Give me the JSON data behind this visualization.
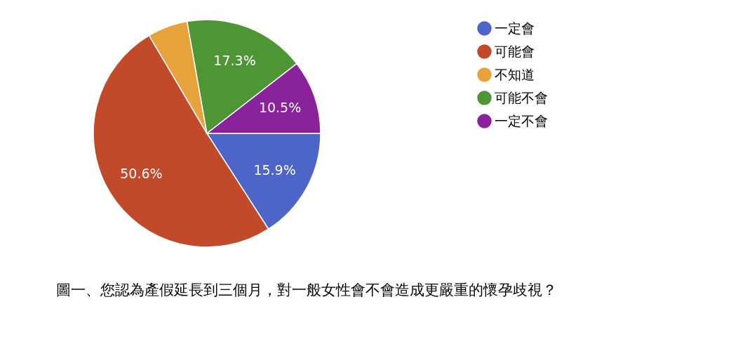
{
  "chart_data": {
    "type": "pie",
    "title": "圖一、您認為產假延長到三個月，對一般女性會不會造成更嚴重的懷孕歧視？",
    "categories": [
      "一定會",
      "可能會",
      "不知道",
      "可能不會",
      "一定不會"
    ],
    "values": [
      15.9,
      50.6,
      5.7,
      17.3,
      10.5
    ],
    "value_labels": [
      "15.9%",
      "50.6%",
      null,
      "17.3%",
      "10.5%"
    ],
    "colors": [
      "#4d65c8",
      "#c04a29",
      "#e8a23c",
      "#4e9535",
      "#8a229b"
    ],
    "legend": "top right"
  }
}
